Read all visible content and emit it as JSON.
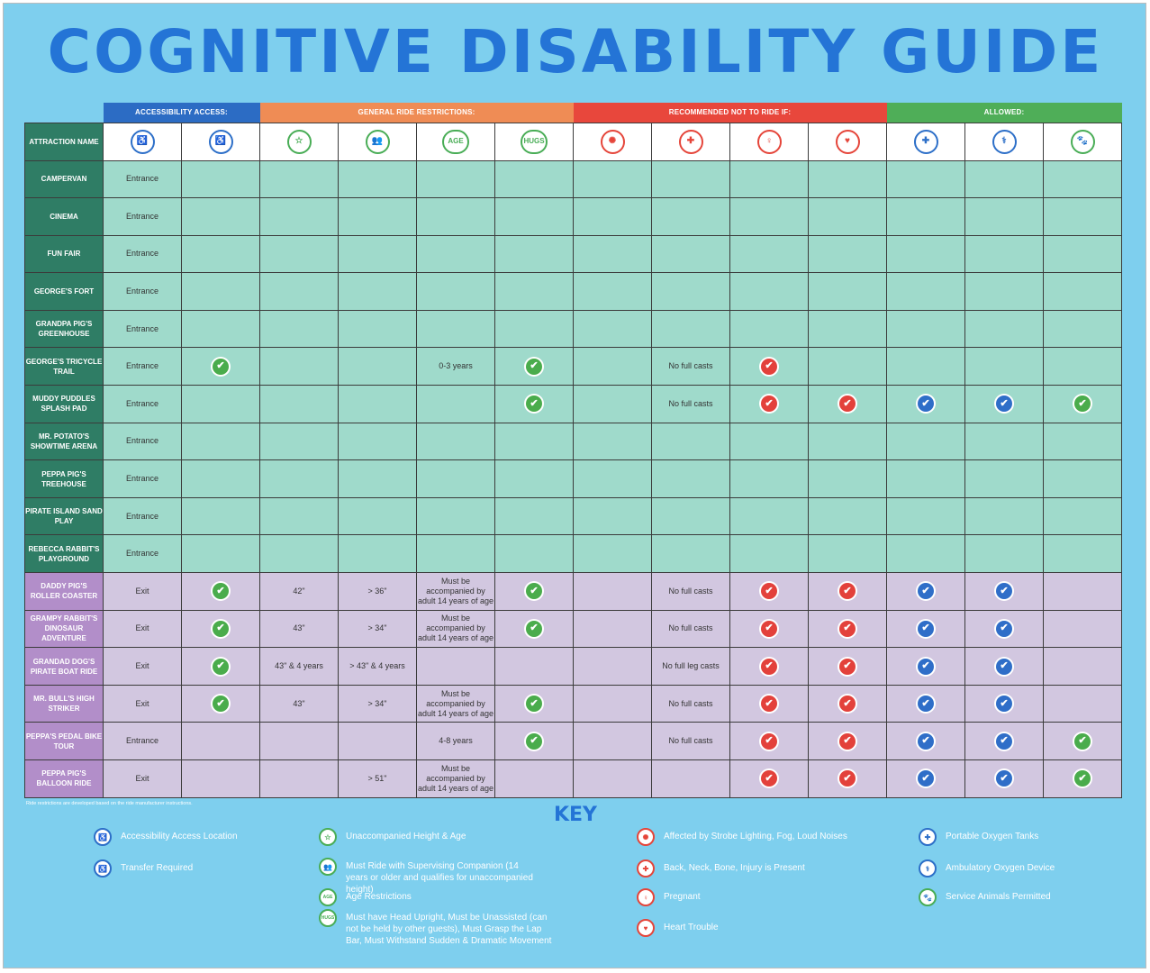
{
  "title": "COGNITIVE DISABILITY GUIDE",
  "categories": {
    "access": "ACCESSIBILITY ACCESS:",
    "general": "GENERAL RIDE RESTRICTIONS:",
    "recommend": "RECOMMENDED NOT TO RIDE IF:",
    "allowed": "ALLOWED:"
  },
  "attraction_header": "ATTRACTION NAME",
  "columns": [
    {
      "icon": "accessibility-access-icon",
      "glyph": "♿",
      "color": "blue"
    },
    {
      "icon": "transfer-required-icon",
      "glyph": "♿",
      "color": "blue"
    },
    {
      "icon": "unaccompanied-height-age-icon",
      "glyph": "☆",
      "color": "green"
    },
    {
      "icon": "supervising-companion-icon",
      "glyph": "👥",
      "color": "green"
    },
    {
      "icon": "age-restrictions-icon",
      "glyph": "AGE",
      "color": "green",
      "text": true
    },
    {
      "icon": "hugs-icon",
      "glyph": "HUGS",
      "color": "green",
      "text": true
    },
    {
      "icon": "strobe-fog-noise-icon",
      "glyph": "✺",
      "color": "red"
    },
    {
      "icon": "back-neck-bone-injury-icon",
      "glyph": "✚",
      "color": "red"
    },
    {
      "icon": "pregnant-icon",
      "glyph": "♀",
      "color": "red"
    },
    {
      "icon": "heart-trouble-icon",
      "glyph": "♥",
      "color": "red"
    },
    {
      "icon": "portable-oxygen-tanks-icon",
      "glyph": "✚",
      "color": "blue"
    },
    {
      "icon": "ambulatory-oxygen-device-icon",
      "glyph": "⚕",
      "color": "blue"
    },
    {
      "icon": "service-animals-icon",
      "glyph": "🐾",
      "color": "green"
    }
  ],
  "rows": [
    {
      "name": "CAMPERVAN",
      "theme": "g",
      "cells": [
        "Entrance",
        "",
        "",
        "",
        "",
        "",
        "",
        "",
        "",
        "",
        "",
        "",
        ""
      ]
    },
    {
      "name": "CINEMA",
      "theme": "g",
      "cells": [
        "Entrance",
        "",
        "",
        "",
        "",
        "",
        "",
        "",
        "",
        "",
        "",
        "",
        ""
      ]
    },
    {
      "name": "FUN FAIR",
      "theme": "g",
      "cells": [
        "Entrance",
        "",
        "",
        "",
        "",
        "",
        "",
        "",
        "",
        "",
        "",
        "",
        ""
      ]
    },
    {
      "name": "GEORGE'S FORT",
      "theme": "g",
      "cells": [
        "Entrance",
        "",
        "",
        "",
        "",
        "",
        "",
        "",
        "",
        "",
        "",
        "",
        ""
      ]
    },
    {
      "name": "GRANDPA PIG'S GREENHOUSE",
      "theme": "g",
      "cells": [
        "Entrance",
        "",
        "",
        "",
        "",
        "",
        "",
        "",
        "",
        "",
        "",
        "",
        ""
      ]
    },
    {
      "name": "GEORGE'S TRICYCLE TRAIL",
      "theme": "g",
      "cells": [
        "Entrance",
        "✔",
        "",
        "",
        "0-3 years",
        "✔",
        "",
        "No full casts",
        "✔",
        "",
        "",
        "",
        ""
      ]
    },
    {
      "name": "MUDDY PUDDLES SPLASH PAD",
      "theme": "g",
      "cells": [
        "Entrance",
        "",
        "",
        "",
        "",
        "✔",
        "",
        "No full casts",
        "✔",
        "✔",
        "✔",
        "✔",
        "✔"
      ]
    },
    {
      "name": "MR. POTATO'S SHOWTIME ARENA",
      "theme": "g",
      "cells": [
        "Entrance",
        "",
        "",
        "",
        "",
        "",
        "",
        "",
        "",
        "",
        "",
        "",
        ""
      ]
    },
    {
      "name": "PEPPA PIG'S TREEHOUSE",
      "theme": "g",
      "cells": [
        "Entrance",
        "",
        "",
        "",
        "",
        "",
        "",
        "",
        "",
        "",
        "",
        "",
        ""
      ]
    },
    {
      "name": "PIRATE ISLAND SAND PLAY",
      "theme": "g",
      "cells": [
        "Entrance",
        "",
        "",
        "",
        "",
        "",
        "",
        "",
        "",
        "",
        "",
        "",
        ""
      ]
    },
    {
      "name": "REBECCA RABBIT'S PLAYGROUND",
      "theme": "g",
      "cells": [
        "Entrance",
        "",
        "",
        "",
        "",
        "",
        "",
        "",
        "",
        "",
        "",
        "",
        ""
      ]
    },
    {
      "name": "DADDY PIG'S ROLLER COASTER",
      "theme": "p",
      "cells": [
        "Exit",
        "✔",
        "42\"",
        "> 36\"",
        "Must be accompanied by adult 14 years of age",
        "✔",
        "",
        "No full casts",
        "✔",
        "✔",
        "✔",
        "✔",
        ""
      ]
    },
    {
      "name": "GRAMPY RABBIT'S DINOSAUR ADVENTURE",
      "theme": "p",
      "cells": [
        "Exit",
        "✔",
        "43\"",
        "> 34\"",
        "Must be accompanied by adult 14 years of age",
        "✔",
        "",
        "No full casts",
        "✔",
        "✔",
        "✔",
        "✔",
        ""
      ]
    },
    {
      "name": "GRANDAD DOG'S PIRATE BOAT RIDE",
      "theme": "p",
      "cells": [
        "Exit",
        "✔",
        "43\" & 4 years",
        "> 43\" & 4 years",
        "",
        "",
        "",
        "No full leg casts",
        "✔",
        "✔",
        "✔",
        "✔",
        ""
      ]
    },
    {
      "name": "MR. BULL'S HIGH STRIKER",
      "theme": "p",
      "cells": [
        "Exit",
        "✔",
        "43\"",
        "> 34\"",
        "Must be accompanied by adult 14 years of age",
        "✔",
        "",
        "No full casts",
        "✔",
        "✔",
        "✔",
        "✔",
        ""
      ]
    },
    {
      "name": "PEPPA'S PEDAL BIKE TOUR",
      "theme": "p",
      "cells": [
        "Entrance",
        "",
        "",
        "",
        "4-8 years",
        "✔",
        "",
        "No full casts",
        "✔",
        "✔",
        "✔",
        "✔",
        "✔"
      ]
    },
    {
      "name": "PEPPA PIG'S BALLOON RIDE",
      "theme": "p",
      "cells": [
        "Exit",
        "",
        "",
        "> 51\"",
        "Must be accompanied by adult 14 years of age",
        "",
        "",
        "",
        "✔",
        "✔",
        "✔",
        "✔",
        "✔"
      ]
    }
  ],
  "check_colors": [
    "green",
    "green",
    "green",
    "green",
    "green",
    "green",
    "red",
    "red",
    "red",
    "red",
    "blue",
    "blue",
    "green"
  ],
  "note": "Ride restrictions are developed based on the ride manufacturer instructions.",
  "key_title": "KEY",
  "key": [
    {
      "label": "Accessibility Access Location",
      "icon": "accessibility-access-icon",
      "glyph": "♿",
      "color": "#2d6fc8"
    },
    {
      "label": "Transfer Required",
      "icon": "transfer-required-icon",
      "glyph": "♿",
      "color": "#2d6fc8"
    },
    {
      "label": "Unaccompanied Height & Age",
      "icon": "unaccompanied-height-age-icon",
      "glyph": "☆",
      "color": "#49ad56"
    },
    {
      "label": "Must Ride with Supervising Companion (14 years or older and qualifies for unaccompanied height)",
      "icon": "supervising-companion-icon",
      "glyph": "👥",
      "color": "#49ad56"
    },
    {
      "label": "Age Restrictions",
      "icon": "age-restrictions-icon",
      "glyph": "AGE",
      "color": "#49ad56"
    },
    {
      "label": "Must have Head Upright, Must be Unassisted (can not be held by other guests), Must Grasp the Lap Bar, Must Withstand Sudden & Dramatic Movement",
      "icon": "hugs-icon",
      "glyph": "HUGS",
      "color": "#49ad56"
    },
    {
      "label": "Affected by Strobe Lighting, Fog, Loud Noises",
      "icon": "strobe-fog-noise-icon",
      "glyph": "✺",
      "color": "#e5453a"
    },
    {
      "label": "Back, Neck, Bone, Injury is Present",
      "icon": "back-neck-bone-injury-icon",
      "glyph": "✚",
      "color": "#e5453a"
    },
    {
      "label": "Pregnant",
      "icon": "pregnant-icon",
      "glyph": "♀",
      "color": "#e5453a"
    },
    {
      "label": "Heart Trouble",
      "icon": "heart-trouble-icon",
      "glyph": "♥",
      "color": "#e5453a"
    },
    {
      "label": "Portable Oxygen Tanks",
      "icon": "portable-oxygen-tanks-icon",
      "glyph": "✚",
      "color": "#2d6fc8"
    },
    {
      "label": "Ambulatory Oxygen Device",
      "icon": "ambulatory-oxygen-device-icon",
      "glyph": "⚕",
      "color": "#2d6fc8"
    },
    {
      "label": "Service Animals Permitted",
      "icon": "service-animals-icon",
      "glyph": "🐾",
      "color": "#49ad56"
    }
  ]
}
